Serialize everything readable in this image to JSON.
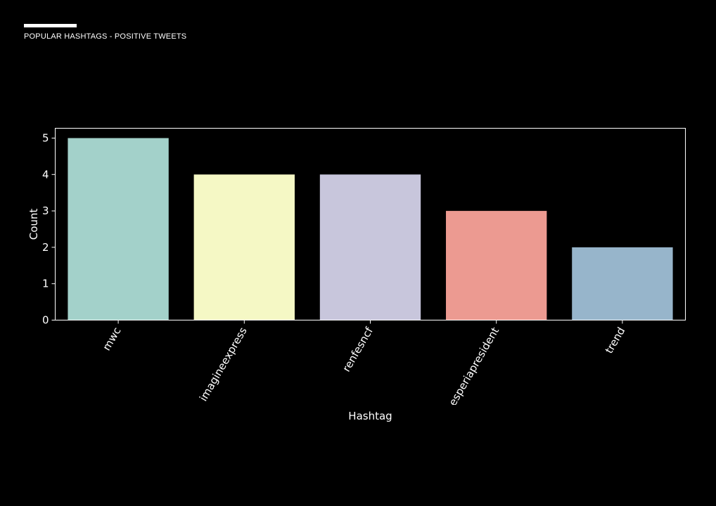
{
  "header": {
    "title": "POPULAR HASHTAGS - POSITIVE TWEETS"
  },
  "chart_data": {
    "type": "bar",
    "title": "",
    "xlabel": "Hashtag",
    "ylabel": "Count",
    "categories": [
      "mwc",
      "imagineexpress",
      "renfesncf",
      "esperiapresident",
      "trend"
    ],
    "values": [
      5,
      4,
      4,
      3,
      2
    ],
    "colors": [
      "#a3d1ca",
      "#f5f8c5",
      "#c8c6dc",
      "#ec9a91",
      "#97b5cb"
    ],
    "ylim": [
      0,
      5.27
    ],
    "yticks": [
      0,
      1,
      2,
      3,
      4,
      5
    ],
    "grid": false,
    "background": "#000000",
    "tick_label_rotation": 60
  }
}
